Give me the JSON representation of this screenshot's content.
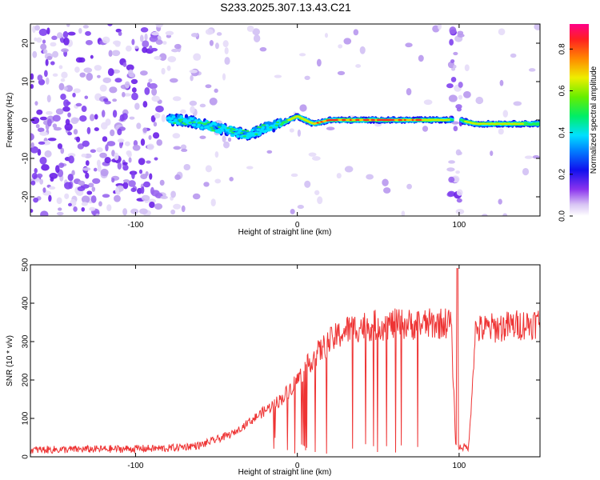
{
  "title": "S233.2025.307.13.43.C21",
  "chart_data": [
    {
      "type": "heatmap",
      "name": "spectrogram",
      "xlabel": "Height of straight line (km)",
      "ylabel": "Frequency (Hz)",
      "xlim": [
        -165,
        150
      ],
      "ylim": [
        -25,
        25
      ],
      "xticks": [
        -100,
        0,
        100
      ],
      "yticks": [
        -20,
        -10,
        0,
        10,
        20
      ],
      "signal_trace": {
        "description_points_x_km": [
          -80,
          -70,
          -60,
          -50,
          -40,
          -30,
          -20,
          -10,
          0,
          10,
          20,
          40,
          60,
          80,
          95,
          100,
          110,
          130,
          150
        ],
        "frequency_hz": [
          0,
          0,
          -1,
          -2,
          -3,
          -4,
          -2,
          -1,
          1,
          -1,
          0,
          0,
          0,
          0,
          0,
          0,
          -1,
          -1,
          -1
        ]
      },
      "colorbar": {
        "label": "Normalized spectral amplitude",
        "range": [
          0.0,
          0.92
        ],
        "ticks": [
          0.0,
          0.2,
          0.4,
          0.6,
          0.8
        ],
        "tick_labels": [
          "0.0",
          "0.2",
          "0.4",
          "0.6",
          "0.8"
        ]
      }
    },
    {
      "type": "line",
      "name": "snr",
      "xlabel": "Height of straight line (km)",
      "ylabel": "SNR (10 * v/v)",
      "xlim": [
        -165,
        150
      ],
      "ylim": [
        0,
        500
      ],
      "xticks": [
        -100,
        0,
        100
      ],
      "yticks": [
        0,
        100,
        200,
        300,
        400,
        500
      ],
      "color": "#ee3333",
      "envelope_x": [
        -165,
        -120,
        -80,
        -60,
        -40,
        -30,
        -20,
        -10,
        0,
        10,
        20,
        30,
        40,
        60,
        80,
        95,
        98,
        102,
        106,
        110,
        130,
        150
      ],
      "envelope_y": [
        18,
        20,
        22,
        30,
        60,
        90,
        120,
        150,
        200,
        260,
        300,
        330,
        340,
        345,
        345,
        350,
        25,
        25,
        25,
        330,
        340,
        350
      ]
    }
  ]
}
